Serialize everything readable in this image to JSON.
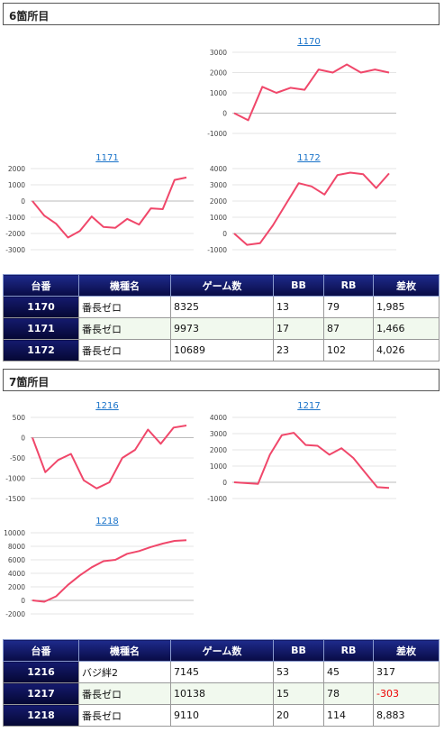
{
  "sections": [
    {
      "title": "6箇所目"
    },
    {
      "title": "7箇所目"
    }
  ],
  "table_headers": [
    "台番",
    "機種名",
    "ゲーム数",
    "BB",
    "RB",
    "差枚"
  ],
  "table1": [
    {
      "id": "1170",
      "machine": "番長ゼロ",
      "games": "8325",
      "bb": "13",
      "rb": "79",
      "diff": "1,985"
    },
    {
      "id": "1171",
      "machine": "番長ゼロ",
      "games": "9973",
      "bb": "17",
      "rb": "87",
      "diff": "1,466"
    },
    {
      "id": "1172",
      "machine": "番長ゼロ",
      "games": "10689",
      "bb": "23",
      "rb": "102",
      "diff": "4,026"
    }
  ],
  "table2": [
    {
      "id": "1216",
      "machine": "バジ絆2",
      "games": "7145",
      "bb": "53",
      "rb": "45",
      "diff": "317"
    },
    {
      "id": "1217",
      "machine": "番長ゼロ",
      "games": "10138",
      "bb": "15",
      "rb": "78",
      "diff": "-303"
    },
    {
      "id": "1218",
      "machine": "番長ゼロ",
      "games": "9110",
      "bb": "20",
      "rb": "114",
      "diff": "8,883"
    }
  ],
  "colors": {
    "line": "#f0476a",
    "grid": "#cccccc",
    "title_link": "#1a73c9",
    "header_bg": "#0d1266",
    "stripe": "#f1f9ee",
    "negative": "#e00000"
  },
  "chart_data": [
    {
      "type": "line",
      "title": "1170",
      "yticks": [
        3000,
        2000,
        1000,
        0,
        -1000
      ],
      "ylim": [
        -1000,
        3000
      ],
      "series": [
        {
          "values": [
            0,
            -350,
            1300,
            1000,
            1250,
            1150,
            2150,
            2000,
            2400,
            2000,
            2150,
            2000
          ]
        }
      ]
    },
    {
      "type": "line",
      "title": "1171",
      "yticks": [
        2000,
        1000,
        0,
        -1000,
        -2000,
        -3000
      ],
      "ylim": [
        -3000,
        2000
      ],
      "series": [
        {
          "values": [
            0,
            -900,
            -1400,
            -2250,
            -1850,
            -950,
            -1600,
            -1650,
            -1100,
            -1450,
            -450,
            -500,
            1300,
            1450
          ]
        }
      ]
    },
    {
      "type": "line",
      "title": "1172",
      "yticks": [
        4000,
        3000,
        2000,
        1000,
        0,
        -1000
      ],
      "ylim": [
        -1000,
        4000
      ],
      "series": [
        {
          "values": [
            0,
            -700,
            -600,
            500,
            1800,
            3100,
            2900,
            2400,
            3600,
            3750,
            3650,
            2800,
            3700
          ]
        }
      ]
    },
    {
      "type": "line",
      "title": "1216",
      "yticks": [
        500,
        0,
        -500,
        -1000,
        -1500
      ],
      "ylim": [
        -1500,
        500
      ],
      "series": [
        {
          "values": [
            0,
            -850,
            -550,
            -400,
            -1050,
            -1250,
            -1100,
            -500,
            -300,
            200,
            -150,
            250,
            300
          ]
        }
      ]
    },
    {
      "type": "line",
      "title": "1217",
      "yticks": [
        4000,
        3000,
        2000,
        1000,
        0,
        -1000
      ],
      "ylim": [
        -1000,
        4000
      ],
      "series": [
        {
          "values": [
            0,
            -50,
            -100,
            1700,
            2900,
            3050,
            2300,
            2250,
            1700,
            2100,
            1500,
            600,
            -300,
            -350
          ]
        }
      ]
    },
    {
      "type": "line",
      "title": "1218",
      "yticks": [
        10000,
        8000,
        6000,
        4000,
        2000,
        0,
        -2000
      ],
      "ylim": [
        -2000,
        10000
      ],
      "series": [
        {
          "values": [
            0,
            -200,
            600,
            2300,
            3700,
            4900,
            5800,
            6000,
            6900,
            7300,
            7900,
            8400,
            8800,
            8900
          ]
        }
      ]
    }
  ]
}
